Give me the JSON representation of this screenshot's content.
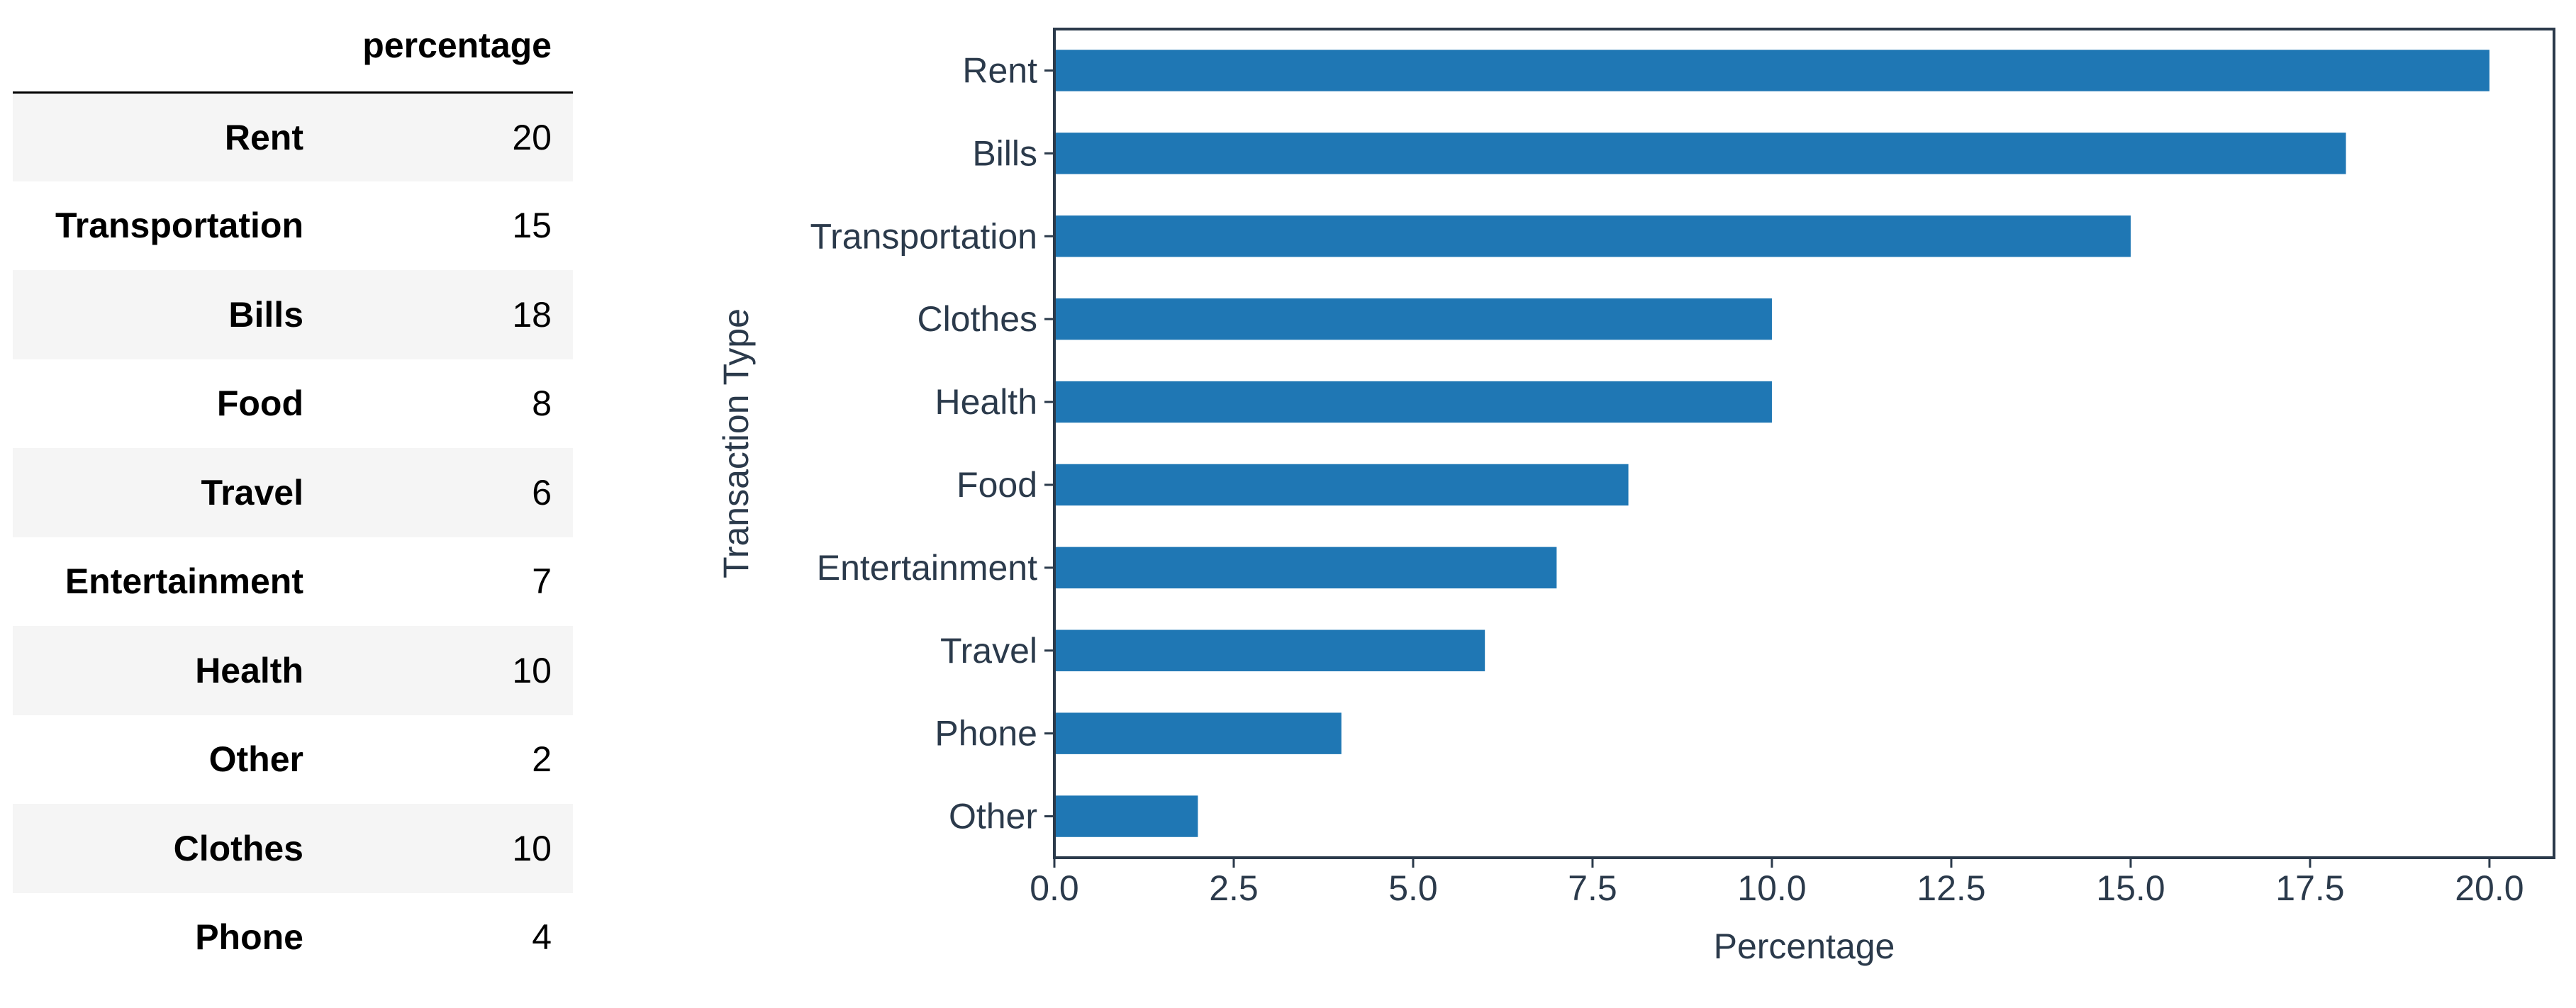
{
  "table": {
    "column_header": "percentage",
    "rows": [
      {
        "label": "Rent",
        "value": "20"
      },
      {
        "label": "Transportation",
        "value": "15"
      },
      {
        "label": "Bills",
        "value": "18"
      },
      {
        "label": "Food",
        "value": "8"
      },
      {
        "label": "Travel",
        "value": "6"
      },
      {
        "label": "Entertainment",
        "value": "7"
      },
      {
        "label": "Health",
        "value": "10"
      },
      {
        "label": "Other",
        "value": "2"
      },
      {
        "label": "Clothes",
        "value": "10"
      },
      {
        "label": "Phone",
        "value": "4"
      }
    ]
  },
  "chart_data": {
    "type": "bar",
    "orientation": "horizontal",
    "categories": [
      "Rent",
      "Bills",
      "Transportation",
      "Clothes",
      "Health",
      "Food",
      "Entertainment",
      "Travel",
      "Phone",
      "Other"
    ],
    "values": [
      20,
      18,
      15,
      10,
      10,
      8,
      7,
      6,
      4,
      2
    ],
    "xlabel": "Percentage",
    "ylabel": "Transaction Type",
    "xlim": [
      0,
      20.9
    ],
    "xticks": [
      "0.0",
      "2.5",
      "5.0",
      "7.5",
      "10.0",
      "12.5",
      "15.0",
      "17.5",
      "20.0"
    ],
    "grid": false,
    "bar_color": "#1f77b4",
    "axis_color": "#2b3a4b"
  }
}
